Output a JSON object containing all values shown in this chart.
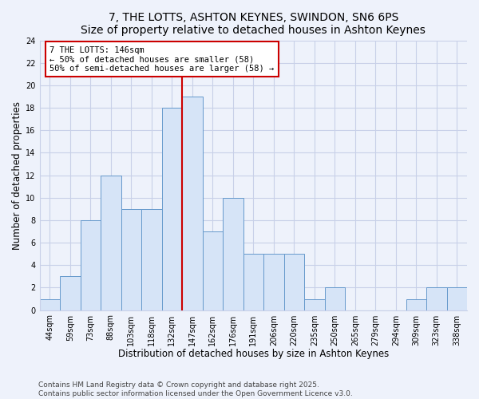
{
  "title": "7, THE LOTTS, ASHTON KEYNES, SWINDON, SN6 6PS",
  "subtitle": "Size of property relative to detached houses in Ashton Keynes",
  "xlabel": "Distribution of detached houses by size in Ashton Keynes",
  "ylabel": "Number of detached properties",
  "bin_labels": [
    "44sqm",
    "59sqm",
    "73sqm",
    "88sqm",
    "103sqm",
    "118sqm",
    "132sqm",
    "147sqm",
    "162sqm",
    "176sqm",
    "191sqm",
    "206sqm",
    "220sqm",
    "235sqm",
    "250sqm",
    "265sqm",
    "279sqm",
    "294sqm",
    "309sqm",
    "323sqm",
    "338sqm"
  ],
  "bar_heights": [
    1,
    3,
    8,
    12,
    9,
    9,
    18,
    19,
    7,
    10,
    5,
    5,
    5,
    1,
    2,
    0,
    0,
    0,
    1,
    2,
    2
  ],
  "bar_color": "#d6e4f7",
  "bar_edge_color": "#6699cc",
  "vline_x": 7.0,
  "vline_color": "#cc0000",
  "annotation_title": "7 THE LOTTS: 146sqm",
  "annotation_line1": "← 50% of detached houses are smaller (58)",
  "annotation_line2": "50% of semi-detached houses are larger (58) →",
  "annotation_box_color": "#ffffff",
  "annotation_box_edge": "#cc0000",
  "ylim": [
    0,
    24
  ],
  "yticks": [
    0,
    2,
    4,
    6,
    8,
    10,
    12,
    14,
    16,
    18,
    20,
    22,
    24
  ],
  "footer_line1": "Contains HM Land Registry data © Crown copyright and database right 2025.",
  "footer_line2": "Contains public sector information licensed under the Open Government Licence v3.0.",
  "background_color": "#eef2fb",
  "grid_color": "#c8d0e8",
  "title_fontsize": 10,
  "axis_label_fontsize": 8.5,
  "tick_fontsize": 7,
  "annotation_fontsize": 7.5,
  "footer_fontsize": 6.5
}
